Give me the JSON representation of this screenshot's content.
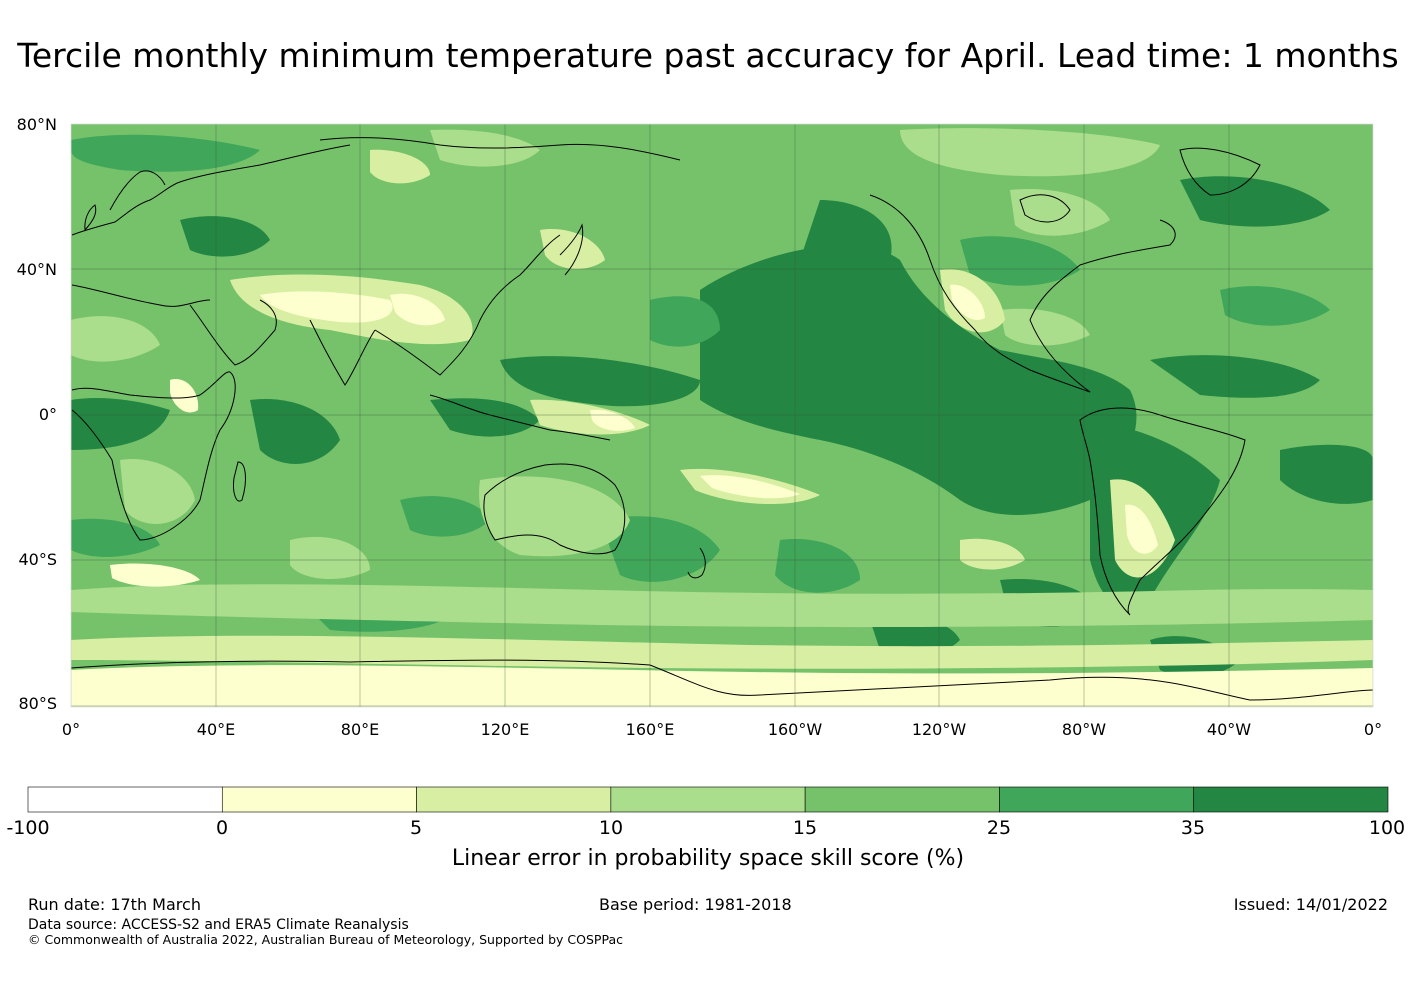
{
  "title": "Tercile monthly minimum temperature past accuracy for April. Lead time: 1 months",
  "map": {
    "lat_labels": [
      "80°N",
      "40°N",
      "0°",
      "40°S",
      "80°S"
    ],
    "lon_labels": [
      "0°",
      "40°E",
      "80°E",
      "120°E",
      "160°E",
      "160°W",
      "120°W",
      "80°W",
      "40°W",
      "0°"
    ],
    "colors": {
      "level_0_5": "#feffcf",
      "level_5_10": "#d8efa3",
      "level_10_15": "#aadd8c",
      "level_15_25": "#76c26b",
      "level_25_35": "#3fa65a",
      "level_35_100": "#238642",
      "coastline": "#000000",
      "gridline": "#3a5a3a"
    }
  },
  "colorbar": {
    "ticks": [
      "-100",
      "0",
      "5",
      "10",
      "15",
      "25",
      "35",
      "100"
    ],
    "bins": [
      {
        "from": -100,
        "to": 0,
        "color": "#ffffff"
      },
      {
        "from": 0,
        "to": 5,
        "color": "#feffcf"
      },
      {
        "from": 5,
        "to": 10,
        "color": "#d8efa3"
      },
      {
        "from": 10,
        "to": 15,
        "color": "#aadd8c"
      },
      {
        "from": 15,
        "to": 25,
        "color": "#76c26b"
      },
      {
        "from": 25,
        "to": 35,
        "color": "#3fa65a"
      },
      {
        "from": 35,
        "to": 100,
        "color": "#238642"
      }
    ],
    "label": "Linear error in probability space skill score (%)"
  },
  "footer": {
    "run_date": "Run date: 17th March",
    "base_period": "Base period: 1981-2018",
    "issued": "Issued: 14/01/2022",
    "data_source": "Data source: ACCESS-S2 and ERA5 Climate Reanalysis",
    "copyright": "© Commonwealth of Australia 2022, Australian Bureau of Meteorology, Supported by COSPPac"
  }
}
